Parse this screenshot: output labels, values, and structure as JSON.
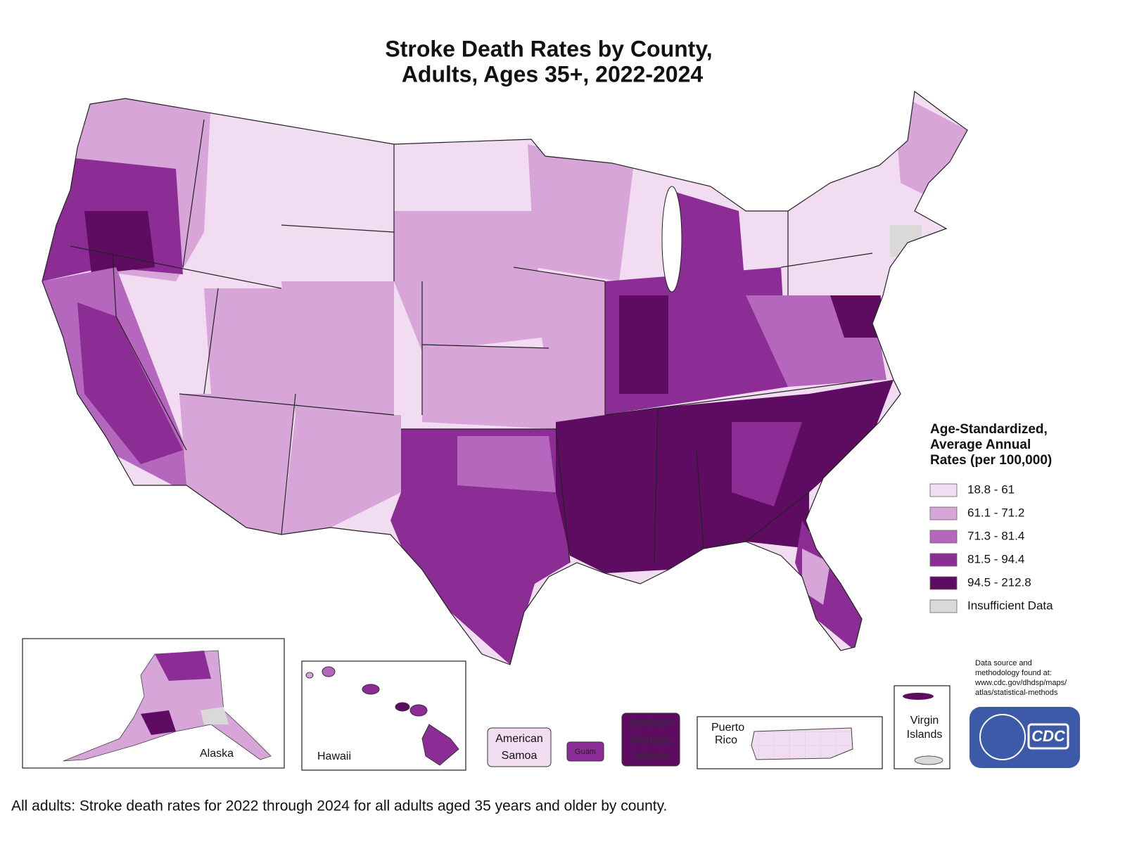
{
  "title": [
    "Stroke Death Rates by County,",
    "Adults, Ages 35+, 2022-2024"
  ],
  "legend": {
    "title": [
      "Age-Standardized,",
      "Average Annual",
      "Rates (per 100,000)"
    ],
    "items": [
      {
        "label": "18.8 - 61",
        "color": "#f1dcf1"
      },
      {
        "label": "61.1 - 71.2",
        "color": "#d7a5d8"
      },
      {
        "label": "71.3 - 81.4",
        "color": "#b567bd"
      },
      {
        "label": "81.5 - 94.4",
        "color": "#8b2d94"
      },
      {
        "label": "94.5 - 212.8",
        "color": "#5d0c62"
      },
      {
        "label": "Insufficient Data",
        "color": "#d9d9d9"
      }
    ]
  },
  "insets": {
    "alaska": "Alaska",
    "hawaii": "Hawaii",
    "american_samoa": [
      "American",
      "Samoa"
    ],
    "guam": "Guam",
    "northern_mariana_islands": [
      "Northern",
      "Mariana",
      "Islands"
    ],
    "puerto_rico": [
      "Puerto",
      "Rico"
    ],
    "virgin_islands": [
      "Virgin",
      "Islands"
    ]
  },
  "source": [
    "Data source and",
    "methodology found at:",
    "www.cdc.gov/dhdsp/maps/",
    "atlas/statistical-methods"
  ],
  "logo": "CDC",
  "caption": "All adults: Stroke death rates for 2022 through 2024 for all adults aged 35 years and older by county."
}
